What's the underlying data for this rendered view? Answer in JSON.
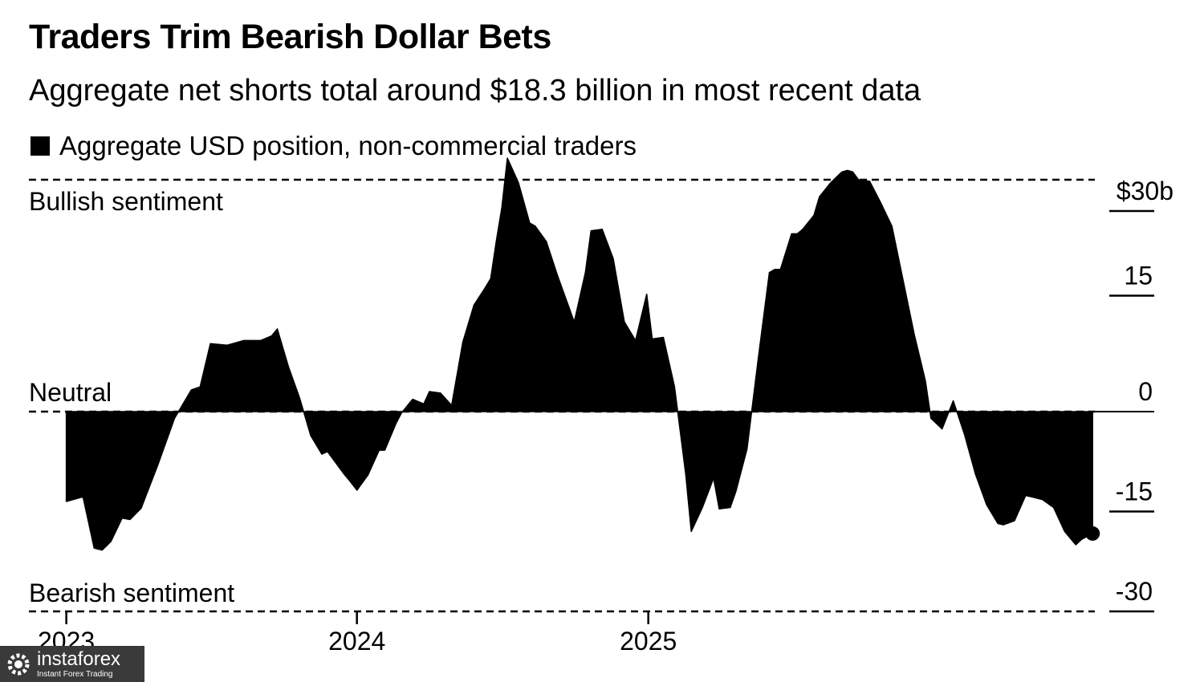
{
  "chart_data": {
    "type": "area",
    "title": "Traders Trim Bearish Dollar Bets",
    "subtitle": "Aggregate net shorts total around $18.3 billion in most recent data",
    "series": [
      {
        "name": "Aggregate USD position, non-commercial traders",
        "color": "#000000",
        "points": [
          [
            "2023-01-01",
            -13.5
          ],
          [
            "2023-01-22",
            -12.8
          ],
          [
            "2023-02-05",
            -20.5
          ],
          [
            "2023-02-15",
            -20.8
          ],
          [
            "2023-02-26",
            -19.5
          ],
          [
            "2023-03-12",
            -16.0
          ],
          [
            "2023-03-22",
            -16.2
          ],
          [
            "2023-04-05",
            -14.5
          ],
          [
            "2023-04-26",
            -8.0
          ],
          [
            "2023-05-17",
            -1.0
          ],
          [
            "2023-06-07",
            2.8
          ],
          [
            "2023-06-18",
            3.2
          ],
          [
            "2023-07-01",
            8.8
          ],
          [
            "2023-07-22",
            8.6
          ],
          [
            "2023-08-12",
            9.2
          ],
          [
            "2023-09-02",
            9.2
          ],
          [
            "2023-09-16",
            9.8
          ],
          [
            "2023-09-23",
            10.7
          ],
          [
            "2023-10-07",
            5.8
          ],
          [
            "2023-10-21",
            1.8
          ],
          [
            "2023-11-04",
            -3.6
          ],
          [
            "2023-11-18",
            -6.4
          ],
          [
            "2023-11-25",
            -6.0
          ],
          [
            "2023-12-16",
            -9.4
          ],
          [
            "2023-12-23",
            -10.4
          ],
          [
            "2024-01-01",
            -11.8
          ],
          [
            "2024-01-15",
            -9.5
          ],
          [
            "2024-01-29",
            -5.8
          ],
          [
            "2024-02-05",
            -5.8
          ],
          [
            "2024-02-19",
            -1.8
          ],
          [
            "2024-02-26",
            -0.2
          ],
          [
            "2024-03-11",
            1.6
          ],
          [
            "2024-03-25",
            1.0
          ],
          [
            "2024-04-01",
            2.6
          ],
          [
            "2024-04-15",
            2.4
          ],
          [
            "2024-04-29",
            0.8
          ],
          [
            "2024-05-13",
            9.0
          ],
          [
            "2024-05-27",
            13.8
          ],
          [
            "2024-06-10",
            16.0
          ],
          [
            "2024-06-17",
            17.2
          ],
          [
            "2024-06-24",
            22.0
          ],
          [
            "2024-07-01",
            26.4
          ],
          [
            "2024-07-08",
            32.8
          ],
          [
            "2024-07-22",
            29.6
          ],
          [
            "2024-08-05",
            24.4
          ],
          [
            "2024-08-12",
            24.0
          ],
          [
            "2024-08-26",
            22.0
          ],
          [
            "2024-09-09",
            17.6
          ],
          [
            "2024-09-23",
            13.6
          ],
          [
            "2024-09-30",
            11.6
          ],
          [
            "2024-10-14",
            18.0
          ],
          [
            "2024-10-21",
            23.4
          ],
          [
            "2024-11-04",
            23.6
          ],
          [
            "2024-11-18",
            19.8
          ],
          [
            "2024-12-02",
            11.6
          ],
          [
            "2024-12-16",
            9.2
          ],
          [
            "2024-12-30",
            15.2
          ],
          [
            "2025-01-06",
            9.4
          ],
          [
            "2025-01-20",
            9.6
          ],
          [
            "2025-02-03",
            3.2
          ],
          [
            "2025-02-17",
            -9.4
          ],
          [
            "2025-02-24",
            -18.0
          ],
          [
            "2025-03-10",
            -14.4
          ],
          [
            "2025-03-24",
            -10.0
          ],
          [
            "2025-03-31",
            -14.6
          ],
          [
            "2025-04-14",
            -14.4
          ],
          [
            "2025-04-21",
            -12.0
          ],
          [
            "2025-05-05",
            -5.6
          ],
          [
            "2025-05-19",
            6.8
          ],
          [
            "2025-06-02",
            18.0
          ],
          [
            "2025-06-09",
            18.4
          ],
          [
            "2025-06-16",
            18.4
          ],
          [
            "2025-06-30",
            23.0
          ],
          [
            "2025-07-07",
            23.0
          ],
          [
            "2025-07-14",
            23.6
          ],
          [
            "2025-07-28",
            25.4
          ],
          [
            "2025-08-04",
            27.8
          ],
          [
            "2025-08-18",
            29.6
          ],
          [
            "2025-09-01",
            31.0
          ],
          [
            "2025-09-08",
            31.2
          ],
          [
            "2025-09-15",
            31.0
          ],
          [
            "2025-09-22",
            30.0
          ],
          [
            "2025-10-06",
            29.8
          ],
          [
            "2025-10-20",
            27.0
          ],
          [
            "2025-11-03",
            24.0
          ],
          [
            "2025-11-17",
            17.0
          ],
          [
            "2025-12-01",
            10.0
          ],
          [
            "2025-12-15",
            4.0
          ],
          [
            "2025-12-22",
            -1.0
          ],
          [
            "2026-01-05",
            -2.6
          ],
          [
            "2026-01-19",
            1.4
          ],
          [
            "2026-02-02",
            -3.4
          ],
          [
            "2026-02-16",
            -9.4
          ],
          [
            "2026-03-02",
            -14.0
          ],
          [
            "2026-03-16",
            -16.8
          ],
          [
            "2026-03-23",
            -17.0
          ],
          [
            "2026-04-06",
            -16.4
          ],
          [
            "2026-04-20",
            -12.6
          ],
          [
            "2026-04-27",
            -12.8
          ],
          [
            "2026-05-11",
            -13.2
          ],
          [
            "2026-05-25",
            -14.4
          ],
          [
            "2026-06-08",
            -18.0
          ],
          [
            "2026-06-22",
            -20.0
          ],
          [
            "2026-06-29",
            -19.2
          ],
          [
            "2026-07-13",
            -18.3
          ]
        ]
      }
    ],
    "last_marker": [
      "2026-07-13",
      -18.3
    ],
    "x_range": [
      "2022-11-15",
      "2026-08-01"
    ],
    "ylim": [
      -30,
      30
    ],
    "yticks": [
      30,
      15,
      0,
      -15,
      -30
    ],
    "ytick_labels": [
      "$30b",
      "15",
      "0",
      "-15",
      "-30"
    ],
    "xticks": [
      {
        "date": "2023-01-01",
        "label": "2023"
      },
      {
        "date": "2024-01-01",
        "label": "2024"
      },
      {
        "date": "2025-01-01",
        "label": "2025"
      }
    ],
    "legend_placement": "top-left",
    "grid": false,
    "annotations": {
      "top": "Bullish sentiment",
      "middle": "Neutral",
      "bottom": "Bearish sentiment"
    }
  },
  "watermark": {
    "name": "instaforex",
    "tagline": "Instant Forex Trading",
    "icon": "gear-logo-icon"
  }
}
